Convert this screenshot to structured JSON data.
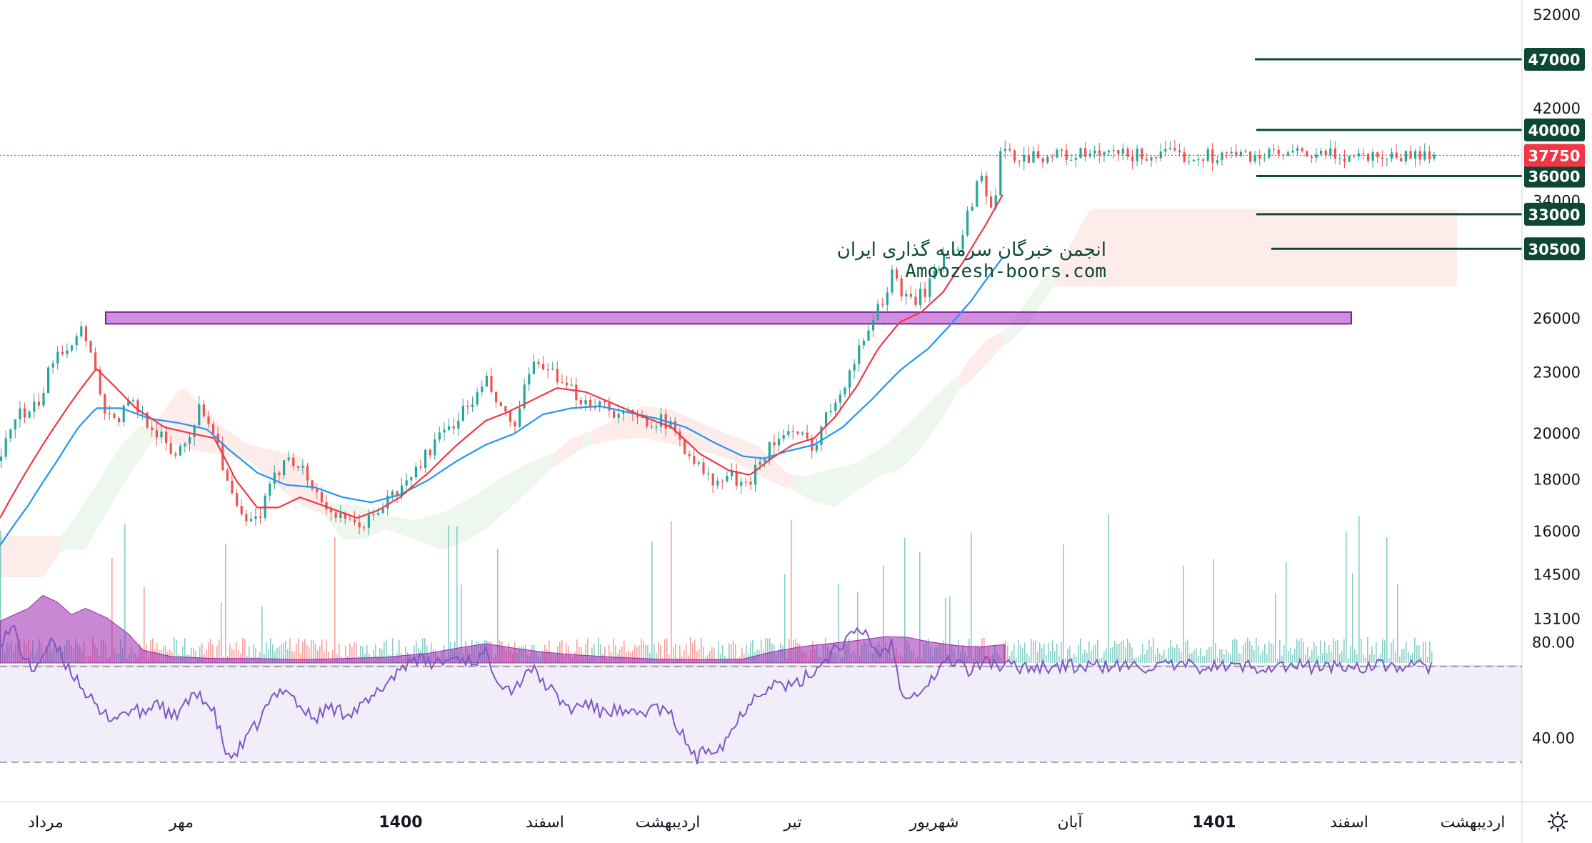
{
  "chart_data": {
    "type": "candlestick",
    "symbol": "",
    "price_axis": {
      "scale": "log",
      "ticks": [
        13100,
        14500,
        16000,
        18000,
        20000,
        23000,
        26000,
        30500,
        34000,
        42000,
        52000
      ],
      "tick_labels": [
        "13100",
        "14500",
        "16000",
        "18000",
        "20000",
        "23000",
        "26000",
        "30500",
        "34000",
        "42000",
        "52000"
      ]
    },
    "rsi_axis": {
      "ticks": [
        40,
        80
      ],
      "tick_labels": [
        "40.00",
        "80.00"
      ],
      "overbought": 70,
      "oversold": 30
    },
    "time_axis": {
      "labels": [
        {
          "text": "مرداد",
          "bold": false
        },
        {
          "text": "مهر",
          "bold": false
        },
        {
          "text": "1400",
          "bold": true
        },
        {
          "text": "اسفند",
          "bold": false
        },
        {
          "text": "اردیبهشت",
          "bold": false
        },
        {
          "text": "تیر",
          "bold": false
        },
        {
          "text": "شهریور",
          "bold": false
        },
        {
          "text": "آبان",
          "bold": false
        },
        {
          "text": "1401",
          "bold": true
        },
        {
          "text": "اسفند",
          "bold": false
        },
        {
          "text": "اردیبهشت",
          "bold": false
        }
      ]
    },
    "last_price": 37750,
    "last_price_label": "37750",
    "levels": [
      {
        "value": 47000,
        "label": "47000"
      },
      {
        "value": 40000,
        "label": "40000"
      },
      {
        "value": 36000,
        "label": "36000"
      },
      {
        "value": 33000,
        "label": "33000"
      },
      {
        "value": 30500,
        "label": "30500"
      }
    ],
    "zone": {
      "from": 25700,
      "to": 26400
    },
    "watermark": {
      "line1": "انجمن خبرگان سرمایه گذاری ایران",
      "line2": "Amoozesh-boors.com"
    },
    "price_path": [
      [
        0,
        18800
      ],
      [
        20,
        21000
      ],
      [
        40,
        20800
      ],
      [
        60,
        22000
      ],
      [
        75,
        24200
      ],
      [
        95,
        24500
      ],
      [
        110,
        25500
      ],
      [
        125,
        24500
      ],
      [
        140,
        21500
      ],
      [
        160,
        20500
      ],
      [
        180,
        21500
      ],
      [
        200,
        20800
      ],
      [
        220,
        20000
      ],
      [
        240,
        19000
      ],
      [
        260,
        19800
      ],
      [
        280,
        21300
      ],
      [
        300,
        20000
      ],
      [
        320,
        17500
      ],
      [
        340,
        16200
      ],
      [
        360,
        16500
      ],
      [
        380,
        17800
      ],
      [
        400,
        19200
      ],
      [
        420,
        18500
      ],
      [
        440,
        17500
      ],
      [
        460,
        16800
      ],
      [
        480,
        16300
      ],
      [
        500,
        16200
      ],
      [
        520,
        16500
      ],
      [
        540,
        17200
      ],
      [
        560,
        17600
      ],
      [
        580,
        18400
      ],
      [
        600,
        19300
      ],
      [
        620,
        20000
      ],
      [
        640,
        20800
      ],
      [
        660,
        21500
      ],
      [
        680,
        22500
      ],
      [
        700,
        21000
      ],
      [
        720,
        20300
      ],
      [
        740,
        23000
      ],
      [
        760,
        23600
      ],
      [
        780,
        22300
      ],
      [
        800,
        22000
      ],
      [
        820,
        21500
      ],
      [
        840,
        21500
      ],
      [
        860,
        21000
      ],
      [
        880,
        20800
      ],
      [
        900,
        20600
      ],
      [
        920,
        20700
      ],
      [
        940,
        20200
      ],
      [
        960,
        19300
      ],
      [
        980,
        18400
      ],
      [
        1000,
        17700
      ],
      [
        1020,
        18300
      ],
      [
        1040,
        17500
      ],
      [
        1060,
        18800
      ],
      [
        1080,
        19600
      ],
      [
        1100,
        20000
      ],
      [
        1120,
        19800
      ],
      [
        1140,
        19500
      ],
      [
        1160,
        21200
      ],
      [
        1180,
        22500
      ],
      [
        1200,
        24000
      ],
      [
        1220,
        26200
      ],
      [
        1240,
        27500
      ],
      [
        1250,
        29800
      ],
      [
        1260,
        27000
      ],
      [
        1280,
        27200
      ],
      [
        1300,
        28000
      ],
      [
        1320,
        30200
      ],
      [
        1340,
        31000
      ],
      [
        1355,
        33000
      ],
      [
        1370,
        36500
      ],
      [
        1385,
        33500
      ],
      [
        1395,
        34800
      ],
      [
        1402,
        39500
      ],
      [
        1407,
        37750
      ]
    ],
    "ema_red_path": [
      [
        0,
        16500
      ],
      [
        40,
        18500
      ],
      [
        80,
        20500
      ],
      [
        110,
        22000
      ],
      [
        135,
        23200
      ],
      [
        160,
        22300
      ],
      [
        190,
        21200
      ],
      [
        230,
        20300
      ],
      [
        270,
        20000
      ],
      [
        300,
        19800
      ],
      [
        330,
        18000
      ],
      [
        360,
        16900
      ],
      [
        390,
        16900
      ],
      [
        420,
        17300
      ],
      [
        460,
        16900
      ],
      [
        500,
        16500
      ],
      [
        530,
        16800
      ],
      [
        560,
        17300
      ],
      [
        600,
        18300
      ],
      [
        640,
        19500
      ],
      [
        680,
        20600
      ],
      [
        710,
        21000
      ],
      [
        740,
        21500
      ],
      [
        780,
        22200
      ],
      [
        820,
        22000
      ],
      [
        860,
        21400
      ],
      [
        900,
        20800
      ],
      [
        940,
        20300
      ],
      [
        980,
        19100
      ],
      [
        1020,
        18400
      ],
      [
        1050,
        18200
      ],
      [
        1080,
        18900
      ],
      [
        1110,
        19500
      ],
      [
        1140,
        19800
      ],
      [
        1170,
        20800
      ],
      [
        1200,
        22300
      ],
      [
        1230,
        24300
      ],
      [
        1260,
        25800
      ],
      [
        1290,
        26400
      ],
      [
        1320,
        27600
      ],
      [
        1350,
        29700
      ],
      [
        1380,
        32200
      ],
      [
        1407,
        34800
      ]
    ],
    "ema_blue_path": [
      [
        0,
        15500
      ],
      [
        40,
        17000
      ],
      [
        80,
        18800
      ],
      [
        110,
        20300
      ],
      [
        135,
        21200
      ],
      [
        170,
        21200
      ],
      [
        210,
        20700
      ],
      [
        250,
        20500
      ],
      [
        290,
        20200
      ],
      [
        320,
        19300
      ],
      [
        360,
        18300
      ],
      [
        400,
        17800
      ],
      [
        440,
        17700
      ],
      [
        480,
        17300
      ],
      [
        520,
        17100
      ],
      [
        560,
        17400
      ],
      [
        600,
        18000
      ],
      [
        640,
        18800
      ],
      [
        680,
        19500
      ],
      [
        720,
        20000
      ],
      [
        760,
        20900
      ],
      [
        800,
        21200
      ],
      [
        840,
        21300
      ],
      [
        880,
        21000
      ],
      [
        920,
        20700
      ],
      [
        960,
        20300
      ],
      [
        1000,
        19600
      ],
      [
        1040,
        19000
      ],
      [
        1070,
        18900
      ],
      [
        1100,
        19200
      ],
      [
        1140,
        19500
      ],
      [
        1180,
        20300
      ],
      [
        1220,
        21600
      ],
      [
        1260,
        23100
      ],
      [
        1300,
        24300
      ],
      [
        1330,
        25600
      ],
      [
        1360,
        27100
      ],
      [
        1390,
        29000
      ],
      [
        1407,
        30100
      ]
    ],
    "rsi_path": [
      [
        0,
        81
      ],
      [
        20,
        86
      ],
      [
        30,
        76
      ],
      [
        45,
        68
      ],
      [
        60,
        75
      ],
      [
        75,
        80
      ],
      [
        90,
        72
      ],
      [
        110,
        64
      ],
      [
        125,
        57
      ],
      [
        140,
        50
      ],
      [
        160,
        49
      ],
      [
        185,
        52
      ],
      [
        200,
        50
      ],
      [
        220,
        56
      ],
      [
        240,
        48
      ],
      [
        260,
        54
      ],
      [
        280,
        59
      ],
      [
        300,
        50
      ],
      [
        320,
        31
      ],
      [
        340,
        37
      ],
      [
        360,
        46
      ],
      [
        380,
        56
      ],
      [
        400,
        62
      ],
      [
        420,
        53
      ],
      [
        440,
        48
      ],
      [
        460,
        53
      ],
      [
        480,
        51
      ],
      [
        500,
        52
      ],
      [
        520,
        56
      ],
      [
        540,
        63
      ],
      [
        560,
        69
      ],
      [
        580,
        74
      ],
      [
        600,
        71
      ],
      [
        620,
        72
      ],
      [
        640,
        74
      ],
      [
        660,
        72
      ],
      [
        680,
        75
      ],
      [
        700,
        64
      ],
      [
        720,
        60
      ],
      [
        740,
        70
      ],
      [
        760,
        64
      ],
      [
        780,
        57
      ],
      [
        800,
        52
      ],
      [
        820,
        55
      ],
      [
        840,
        51
      ],
      [
        860,
        52
      ],
      [
        880,
        49
      ],
      [
        900,
        51
      ],
      [
        920,
        53
      ],
      [
        940,
        49
      ],
      [
        960,
        39
      ],
      [
        975,
        31
      ],
      [
        990,
        36
      ],
      [
        1010,
        37
      ],
      [
        1030,
        46
      ],
      [
        1050,
        56
      ],
      [
        1070,
        61
      ],
      [
        1090,
        63
      ],
      [
        1110,
        61
      ],
      [
        1130,
        66
      ],
      [
        1150,
        71
      ],
      [
        1170,
        78
      ],
      [
        1190,
        82
      ],
      [
        1210,
        85
      ],
      [
        1230,
        75
      ],
      [
        1250,
        80
      ],
      [
        1260,
        60
      ],
      [
        1280,
        59
      ],
      [
        1300,
        63
      ],
      [
        1320,
        71
      ],
      [
        1340,
        73
      ],
      [
        1360,
        67
      ],
      [
        1380,
        74
      ],
      [
        1395,
        70
      ],
      [
        1407,
        70
      ]
    ],
    "volume_ma_path": [
      [
        0,
        13200
      ],
      [
        20,
        13300
      ],
      [
        40,
        13400
      ],
      [
        60,
        13600
      ],
      [
        80,
        13500
      ],
      [
        100,
        13300
      ],
      [
        120,
        13400
      ],
      [
        150,
        13250
      ],
      [
        180,
        13000
      ],
      [
        200,
        12750
      ],
      [
        240,
        12650
      ],
      [
        300,
        12620
      ],
      [
        360,
        12620
      ],
      [
        420,
        12600
      ],
      [
        480,
        12620
      ],
      [
        540,
        12640
      ],
      [
        600,
        12700
      ],
      [
        640,
        12780
      ],
      [
        680,
        12850
      ],
      [
        720,
        12780
      ],
      [
        760,
        12720
      ],
      [
        800,
        12680
      ],
      [
        860,
        12640
      ],
      [
        920,
        12610
      ],
      [
        980,
        12600
      ],
      [
        1040,
        12610
      ],
      [
        1080,
        12720
      ],
      [
        1120,
        12800
      ],
      [
        1160,
        12850
      ],
      [
        1200,
        12900
      ],
      [
        1240,
        12960
      ],
      [
        1270,
        12950
      ],
      [
        1300,
        12880
      ],
      [
        1340,
        12820
      ],
      [
        1370,
        12800
      ],
      [
        1400,
        12830
      ],
      [
        1407,
        12830
      ]
    ]
  }
}
